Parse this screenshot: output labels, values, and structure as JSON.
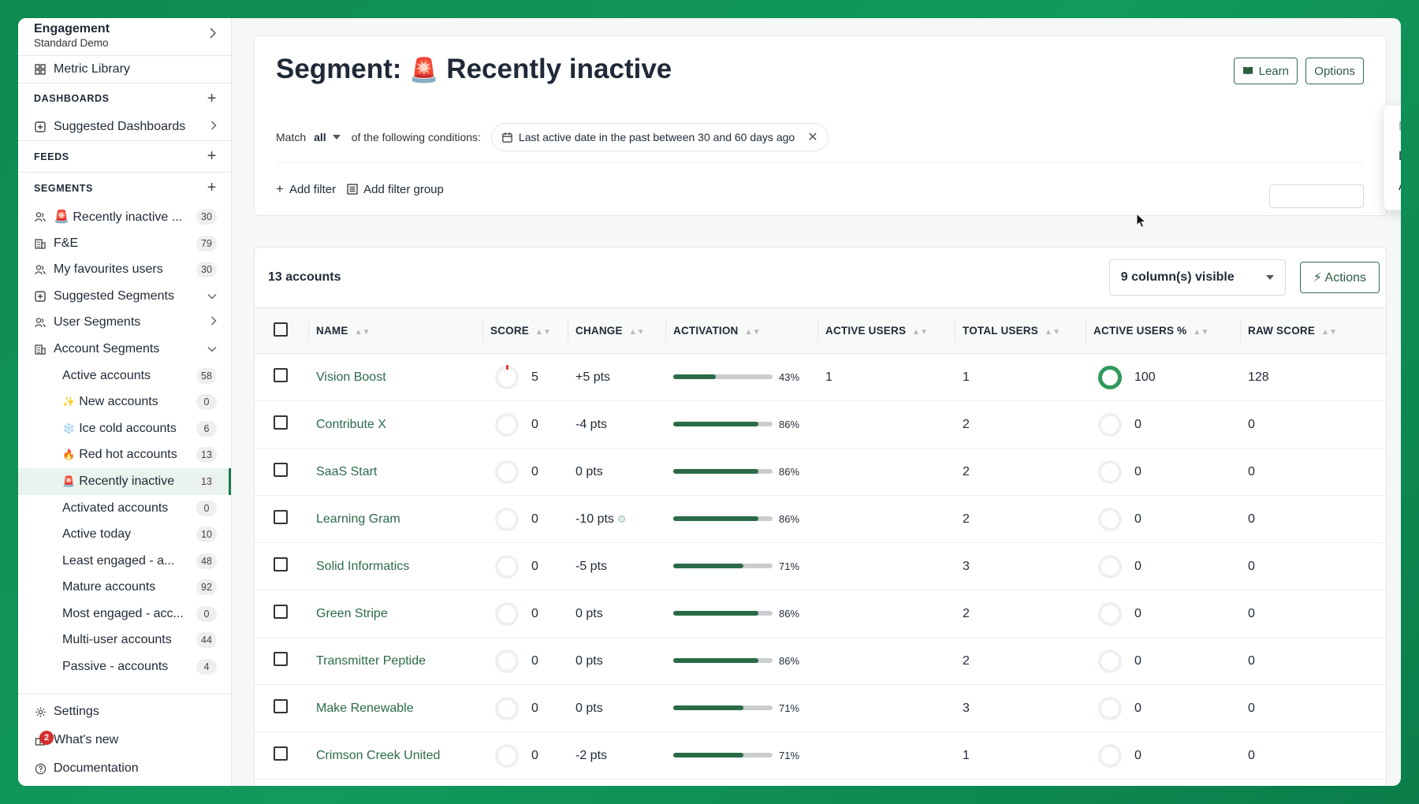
{
  "workspace": {
    "title": "Engagement",
    "subtitle": "Standard Demo"
  },
  "sidebar": {
    "metric_library": "Metric Library",
    "dashboards_header": "DASHBOARDS",
    "suggested_dashboards": "Suggested Dashboards",
    "feeds_header": "FEEDS",
    "segments_header": "SEGMENTS",
    "segment_items": [
      {
        "label": "Recently inactive ...",
        "count": "30"
      },
      {
        "label": "F&E",
        "count": "79"
      },
      {
        "label": "My favourites users",
        "count": "30"
      },
      {
        "label": "Suggested Segments"
      },
      {
        "label": "User Segments"
      },
      {
        "label": "Account Segments"
      }
    ],
    "account_segments": [
      {
        "label": "Active accounts",
        "count": "58",
        "emoji": ""
      },
      {
        "label": "New accounts",
        "count": "0",
        "emoji": "✨"
      },
      {
        "label": "Ice cold accounts",
        "count": "6",
        "emoji": "❄️"
      },
      {
        "label": "Red hot accounts",
        "count": "13",
        "emoji": "🔥"
      },
      {
        "label": "Recently inactive",
        "count": "13",
        "emoji": "🚨"
      },
      {
        "label": "Activated accounts",
        "count": "0",
        "emoji": ""
      },
      {
        "label": "Active today",
        "count": "10",
        "emoji": ""
      },
      {
        "label": "Least engaged - a...",
        "count": "48",
        "emoji": ""
      },
      {
        "label": "Mature accounts",
        "count": "92",
        "emoji": ""
      },
      {
        "label": "Most engaged - acc...",
        "count": "0",
        "emoji": ""
      },
      {
        "label": "Multi-user accounts",
        "count": "44",
        "emoji": ""
      },
      {
        "label": "Passive - accounts",
        "count": "4",
        "emoji": ""
      }
    ],
    "settings": "Settings",
    "whats_new": "What's new",
    "whats_new_badge": "2",
    "documentation": "Documentation"
  },
  "segment": {
    "title_prefix": "Segment:",
    "emoji": "🚨",
    "title_name": "Recently inactive",
    "learn_label": "Learn",
    "options_label": "Options",
    "match_label": "Match",
    "match_value": "all",
    "conditions_text": "of the following conditions:",
    "condition_chip": "Last active date in the past between 30 and 60 days ago",
    "add_filter": "Add filter",
    "add_filter_group": "Add filter group"
  },
  "options_menu": {
    "items": [
      "Delete segment",
      "Duplicate segment",
      "Add segment"
    ]
  },
  "table": {
    "count_label": "13 accounts",
    "columns_visible": "9 column(s) visible",
    "actions_label": "⚡ Actions",
    "headers": [
      "NAME",
      "SCORE",
      "CHANGE",
      "ACTIVATION",
      "ACTIVE USERS",
      "TOTAL USERS",
      "ACTIVE USERS %",
      "RAW SCORE"
    ],
    "rows": [
      {
        "name": "Vision Boost",
        "score": "5",
        "change": "+5 pts",
        "activation": 43,
        "activation_label": "43%",
        "active_users": "1",
        "total_users": "1",
        "active_pct": "100",
        "raw_score": "128"
      },
      {
        "name": "Contribute X",
        "score": "0",
        "change": "-4 pts",
        "activation": 86,
        "activation_label": "86%",
        "active_users": "",
        "total_users": "2",
        "active_pct": "0",
        "raw_score": "0"
      },
      {
        "name": "SaaS Start",
        "score": "0",
        "change": "0 pts",
        "activation": 86,
        "activation_label": "86%",
        "active_users": "",
        "total_users": "2",
        "active_pct": "0",
        "raw_score": "0"
      },
      {
        "name": "Learning Gram",
        "score": "0",
        "change": "-10 pts",
        "activation": 86,
        "activation_label": "86%",
        "active_users": "",
        "total_users": "2",
        "active_pct": "0",
        "raw_score": "0"
      },
      {
        "name": "Solid Informatics",
        "score": "0",
        "change": "-5 pts",
        "activation": 71,
        "activation_label": "71%",
        "active_users": "",
        "total_users": "3",
        "active_pct": "0",
        "raw_score": "0"
      },
      {
        "name": "Green Stripe",
        "score": "0",
        "change": "0 pts",
        "activation": 86,
        "activation_label": "86%",
        "active_users": "",
        "total_users": "2",
        "active_pct": "0",
        "raw_score": "0"
      },
      {
        "name": "Transmitter Peptide",
        "score": "0",
        "change": "0 pts",
        "activation": 86,
        "activation_label": "86%",
        "active_users": "",
        "total_users": "2",
        "active_pct": "0",
        "raw_score": "0"
      },
      {
        "name": "Make Renewable",
        "score": "0",
        "change": "0 pts",
        "activation": 71,
        "activation_label": "71%",
        "active_users": "",
        "total_users": "3",
        "active_pct": "0",
        "raw_score": "0"
      },
      {
        "name": "Crimson Creek United",
        "score": "0",
        "change": "-2 pts",
        "activation": 71,
        "activation_label": "71%",
        "active_users": "",
        "total_users": "1",
        "active_pct": "0",
        "raw_score": "0"
      }
    ]
  },
  "colors": {
    "accent": "#2b6b48",
    "brand_bg": "#0e8a52",
    "alert": "#d32f2f"
  }
}
